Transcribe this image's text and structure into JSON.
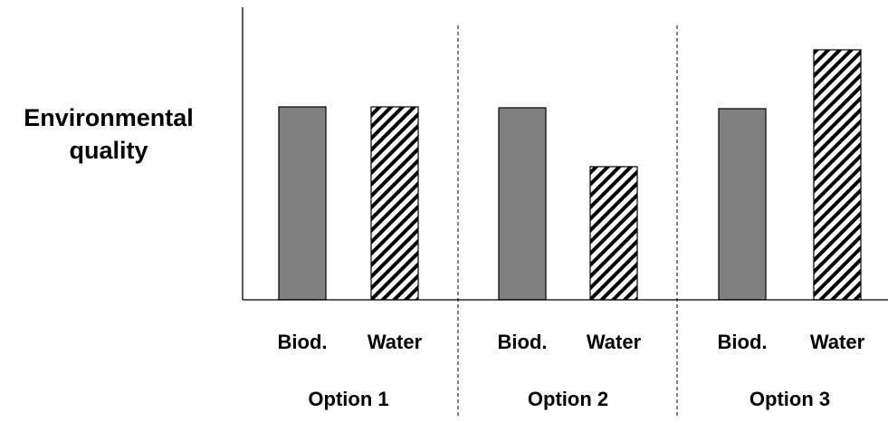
{
  "chart_data": {
    "type": "bar",
    "ylabel_lines": [
      "Environmental",
      "quality"
    ],
    "groups": [
      {
        "label": "Option 1",
        "bars": [
          {
            "category": "Biod.",
            "value": 213,
            "pattern": "solid-gray"
          },
          {
            "category": "Water",
            "value": 213,
            "pattern": "hatched"
          }
        ]
      },
      {
        "label": "Option 2",
        "bars": [
          {
            "category": "Biod.",
            "value": 212,
            "pattern": "solid-gray"
          },
          {
            "category": "Water",
            "value": 147,
            "pattern": "hatched"
          }
        ]
      },
      {
        "label": "Option 3",
        "bars": [
          {
            "category": "Biod.",
            "value": 211,
            "pattern": "solid-gray"
          },
          {
            "category": "Water",
            "value": 276,
            "pattern": "hatched"
          }
        ]
      }
    ],
    "ylim": [
      0,
      323
    ],
    "y_ticks_shown": false,
    "grid": false,
    "group_separators": "dashed",
    "colors": {
      "solid": "#808080",
      "hatch": "#000000",
      "background": "#ffffff"
    }
  }
}
